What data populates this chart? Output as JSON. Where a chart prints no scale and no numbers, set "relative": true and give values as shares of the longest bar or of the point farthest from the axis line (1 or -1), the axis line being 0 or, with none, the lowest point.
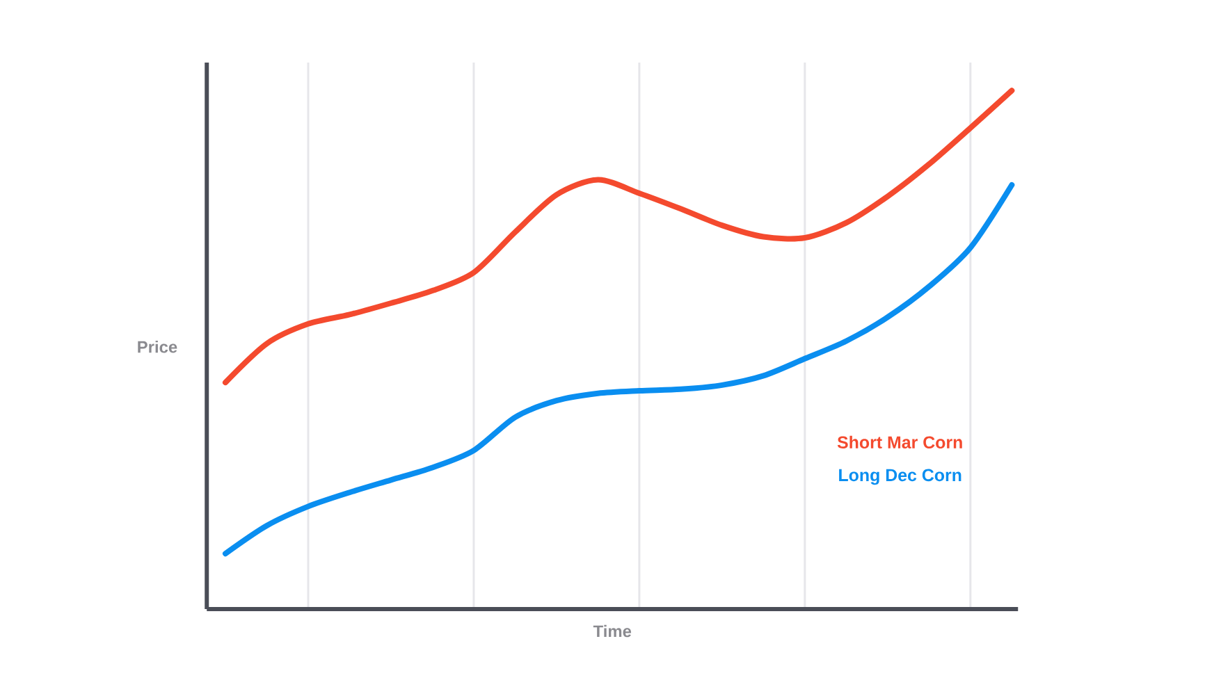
{
  "chart_data": {
    "type": "line",
    "relative": true,
    "xlabel": "Time",
    "ylabel": "Price",
    "grid": "x",
    "legend": "right",
    "marker": "none",
    "line_style": "solid",
    "categories": [
      null,
      null,
      null,
      null,
      null,
      null,
      null,
      null,
      null,
      null,
      null,
      null,
      null,
      null,
      null,
      null,
      null,
      null,
      null,
      null
    ],
    "series": [
      {
        "name": "Short Mar Corn",
        "color": "#f44a2e",
        "values": [
          0.437,
          0.512,
          0.55,
          0.568,
          0.59,
          0.614,
          0.649,
          0.727,
          0.799,
          0.828,
          0.802,
          0.772,
          0.74,
          0.718,
          0.716,
          0.745,
          0.796,
          0.858,
          0.928,
          1
        ]
      },
      {
        "name": "Long Dec Corn",
        "color": "#0a8ef0",
        "values": [
          0.107,
          0.161,
          0.198,
          0.225,
          0.249,
          0.273,
          0.306,
          0.37,
          0.402,
          0.416,
          0.421,
          0.424,
          0.432,
          0.45,
          0.483,
          0.517,
          0.563,
          0.622,
          0.697,
          0.818
        ]
      }
    ]
  }
}
